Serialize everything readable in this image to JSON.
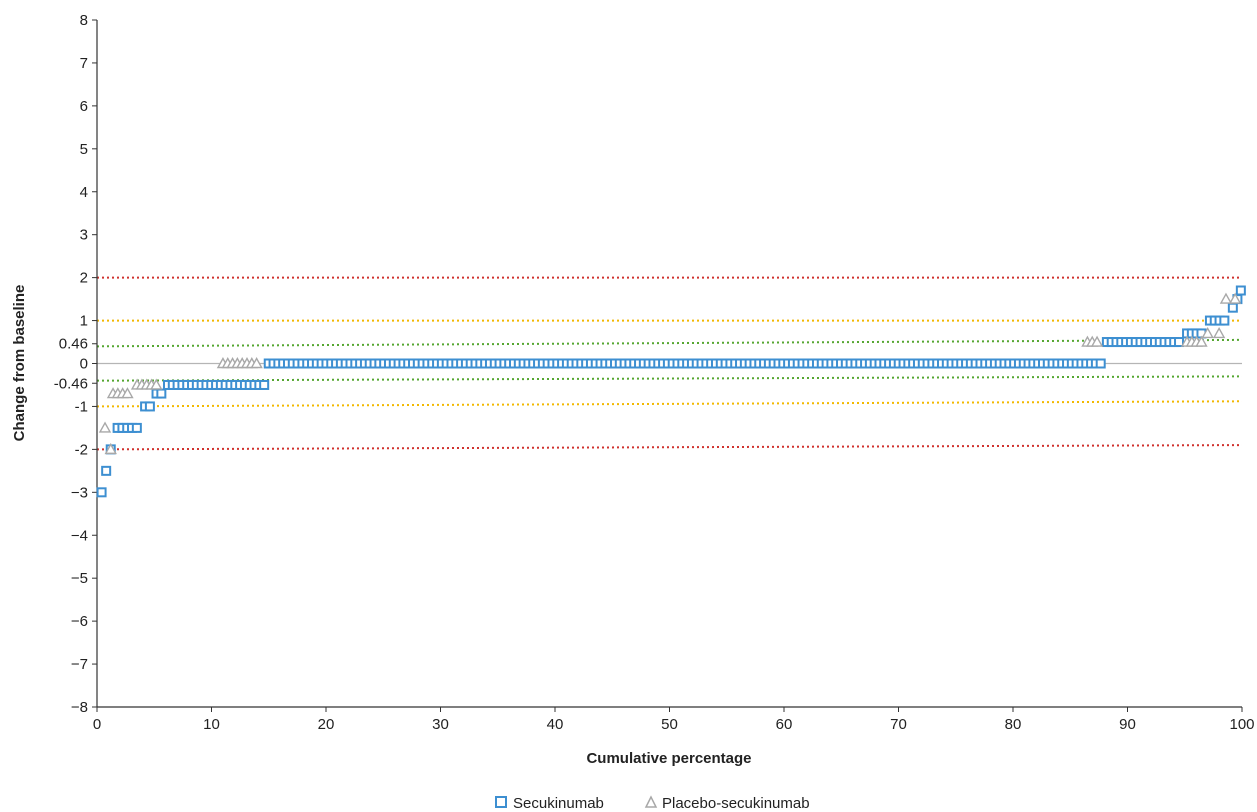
{
  "chart_data": {
    "type": "scatter",
    "title": "",
    "xlabel": "Cumulative percentage",
    "ylabel": "Change from baseline",
    "xlim": [
      0,
      100
    ],
    "ylim": [
      -8,
      8
    ],
    "x_ticks": [
      "0",
      "10",
      "20",
      "30",
      "40",
      "50",
      "60",
      "70",
      "80",
      "90",
      "100"
    ],
    "y_ticks": [
      {
        "value": 8,
        "label": "8"
      },
      {
        "value": 7,
        "label": "7"
      },
      {
        "value": 6,
        "label": "6"
      },
      {
        "value": 5,
        "label": "5"
      },
      {
        "value": 4,
        "label": "4"
      },
      {
        "value": 3,
        "label": "3"
      },
      {
        "value": 2,
        "label": "2"
      },
      {
        "value": 1,
        "label": "1"
      },
      {
        "value": 0.46,
        "label": "0.46"
      },
      {
        "value": 0,
        "label": "0"
      },
      {
        "value": -0.46,
        "label": "-0.46"
      },
      {
        "value": -1,
        "label": "-1"
      },
      {
        "value": -2,
        "label": "-2"
      },
      {
        "value": -3,
        "label": "−3"
      },
      {
        "value": -4,
        "label": "−4"
      },
      {
        "value": -5,
        "label": "−5"
      },
      {
        "value": -6,
        "label": "−6"
      },
      {
        "value": -7,
        "label": "−7"
      },
      {
        "value": -8,
        "label": "−8"
      }
    ],
    "legend_position": "bottom-center",
    "reference_lines": [
      {
        "y_start": 2,
        "y_end": 2,
        "color": "#d0312d",
        "style": "dotted"
      },
      {
        "y_start": -2,
        "y_end": -1.9,
        "color": "#d0312d",
        "style": "dotted"
      },
      {
        "y_start": 1,
        "y_end": 1,
        "color": "#f2b800",
        "style": "dotted"
      },
      {
        "y_start": -1,
        "y_end": -0.88,
        "color": "#f2b800",
        "style": "dotted"
      },
      {
        "y_start": 0.4,
        "y_end": 0.55,
        "color": "#55a630",
        "style": "dotted"
      },
      {
        "y_start": -0.4,
        "y_end": -0.3,
        "color": "#55a630",
        "style": "dotted"
      },
      {
        "y_start": 0,
        "y_end": 0,
        "color": "#b5b5b5",
        "style": "solid"
      }
    ],
    "series": [
      {
        "name": "Secukinumab",
        "marker": "square",
        "color": "#3d8fd1",
        "segments": [
          {
            "x_from": 0.4,
            "x_to": 0.4,
            "y": -3
          },
          {
            "x_from": 0.8,
            "x_to": 0.8,
            "y": -2.5
          },
          {
            "x_from": 1.2,
            "x_to": 1.6,
            "y": -2
          },
          {
            "x_from": 1.8,
            "x_to": 3.8,
            "y": -1.5
          },
          {
            "x_from": 4.2,
            "x_to": 4.8,
            "y": -1
          },
          {
            "x_from": 5.2,
            "x_to": 5.8,
            "y": -0.7
          },
          {
            "x_from": 6.2,
            "x_to": 14.6,
            "y": -0.5
          },
          {
            "x_from": 15,
            "x_to": 87.8,
            "y": 0
          },
          {
            "x_from": 88.2,
            "x_to": 94.8,
            "y": 0.5
          },
          {
            "x_from": 95.2,
            "x_to": 96.8,
            "y": 0.7
          },
          {
            "x_from": 97.2,
            "x_to": 98.8,
            "y": 1
          },
          {
            "x_from": 99.2,
            "x_to": 99.2,
            "y": 1.3
          },
          {
            "x_from": 99.6,
            "x_to": 99.6,
            "y": 1.5
          },
          {
            "x_from": 99.9,
            "x_to": 99.9,
            "y": 1.7
          }
        ]
      },
      {
        "name": "Placebo-secukinumab",
        "marker": "triangle",
        "color": "#a8a8a8",
        "segments": [
          {
            "x_from": 0.7,
            "x_to": 0.7,
            "y": -1.5
          },
          {
            "x_from": 1.2,
            "x_to": 1.2,
            "y": -2
          },
          {
            "x_from": 1.4,
            "x_to": 2.9,
            "y": -0.7
          },
          {
            "x_from": 3.5,
            "x_to": 5.5,
            "y": -0.5
          },
          {
            "x_from": 11,
            "x_to": 14.3,
            "y": 0
          },
          {
            "x_from": 86.5,
            "x_to": 87.5,
            "y": 0.5
          },
          {
            "x_from": 95.2,
            "x_to": 96.8,
            "y": 0.5
          },
          {
            "x_from": 97,
            "x_to": 97,
            "y": 0.7
          },
          {
            "x_from": 98,
            "x_to": 98,
            "y": 0.7
          },
          {
            "x_from": 98.6,
            "x_to": 98.6,
            "y": 1.5
          },
          {
            "x_from": 99.4,
            "x_to": 99.4,
            "y": 1.5
          }
        ]
      }
    ]
  }
}
